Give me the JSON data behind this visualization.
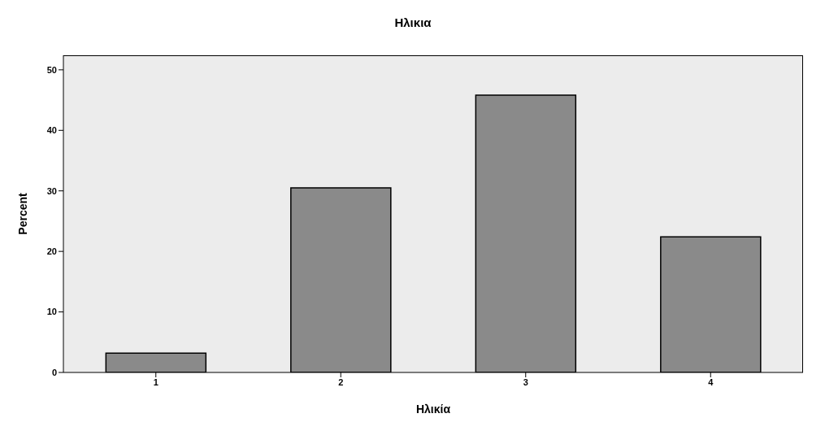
{
  "chart_data": {
    "type": "bar",
    "title": "Ηλικια",
    "xlabel": "Ηλικία",
    "ylabel": "Percent",
    "categories": [
      "1",
      "2",
      "3",
      "4"
    ],
    "values": [
      3.2,
      30.5,
      45.8,
      22.4
    ],
    "color": "#8a8a8a",
    "ylim": [
      0,
      52.4
    ],
    "yticks": [
      0,
      10,
      20,
      30,
      40,
      50
    ],
    "grid": false
  }
}
